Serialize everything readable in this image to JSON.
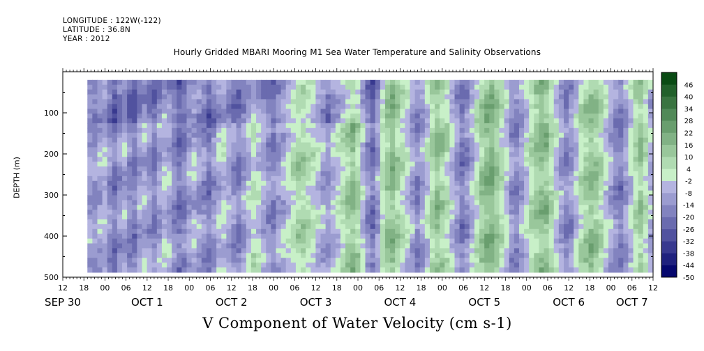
{
  "header": {
    "longitude": "LONGITUDE : 122W(-122)",
    "latitude": "LATITUDE : 36.8N",
    "year": "YEAR : 2012"
  },
  "chart_data": {
    "type": "heatmap",
    "title": "Hourly Gridded MBARI Mooring M1 Sea Water Temperature and Salinity Observations",
    "xlabel": "V Component of Water Velocity (cm s-1)",
    "ylabel": "DEPTH (m)",
    "ylim": [
      500,
      0
    ],
    "yticks": [
      100,
      200,
      300,
      400,
      500
    ],
    "x_hour_ticks": [
      "12",
      "18",
      "00",
      "06",
      "12",
      "18",
      "00",
      "06",
      "12",
      "18",
      "00",
      "06",
      "12",
      "18",
      "00",
      "06",
      "12",
      "18",
      "00",
      "06",
      "12",
      "18",
      "00",
      "06",
      "12",
      "18",
      "00",
      "06",
      "12"
    ],
    "x_date_labels": [
      {
        "text": "SEP 30",
        "at_hour": 12
      },
      {
        "text": "OCT 1",
        "at_hour": 36
      },
      {
        "text": "OCT 2",
        "at_hour": 60
      },
      {
        "text": "OCT 3",
        "at_hour": 84
      },
      {
        "text": "OCT 4",
        "at_hour": 108
      },
      {
        "text": "OCT 5",
        "at_hour": 132
      },
      {
        "text": "OCT 6",
        "at_hour": 156
      },
      {
        "text": "OCT 7",
        "at_hour": 174
      }
    ],
    "xlim_hours_from_sep30_00": [
      12,
      180
    ],
    "data_hours": [
      19,
      180
    ],
    "depth_range": [
      20,
      488
    ],
    "colorbar": {
      "labels": [
        "46",
        "40",
        "34",
        "28",
        "22",
        "16",
        "10",
        "4",
        "-2",
        "-8",
        "-14",
        "-20",
        "-26",
        "-32",
        "-38",
        "-44",
        "-50"
      ],
      "min": -50,
      "max": 52,
      "step": 6
    },
    "column_mean_v": [
      -10,
      -12,
      -8,
      -5,
      -14,
      -18,
      -12,
      -8,
      -15,
      -18,
      -10,
      -6,
      -12,
      -16,
      -10,
      -4,
      -8,
      -14,
      -20,
      -16,
      -10,
      -6,
      -10,
      -14,
      -18,
      -12,
      -6,
      -2,
      -8,
      -12,
      -16,
      -10,
      -4,
      2,
      -2,
      -8,
      -12,
      -16,
      -10,
      -6,
      -2,
      4,
      8,
      10,
      6,
      2,
      -4,
      -8,
      -12,
      -6,
      -2,
      4,
      10,
      14,
      8,
      -4,
      -14,
      -20,
      -10,
      4,
      12,
      16,
      10,
      4,
      -2,
      -10,
      -16,
      -10,
      -2,
      8,
      14,
      10,
      4,
      -4,
      -12,
      -18,
      -14,
      -6,
      2,
      10,
      16,
      18,
      12,
      4,
      -4,
      -12,
      -16,
      -10,
      -2,
      6,
      12,
      16,
      14,
      6,
      -2,
      -10,
      -16,
      -12,
      -4,
      4,
      10,
      14,
      12,
      6,
      -2,
      -8,
      -14,
      -18,
      -10,
      -2,
      6,
      12,
      4,
      -6
    ]
  }
}
